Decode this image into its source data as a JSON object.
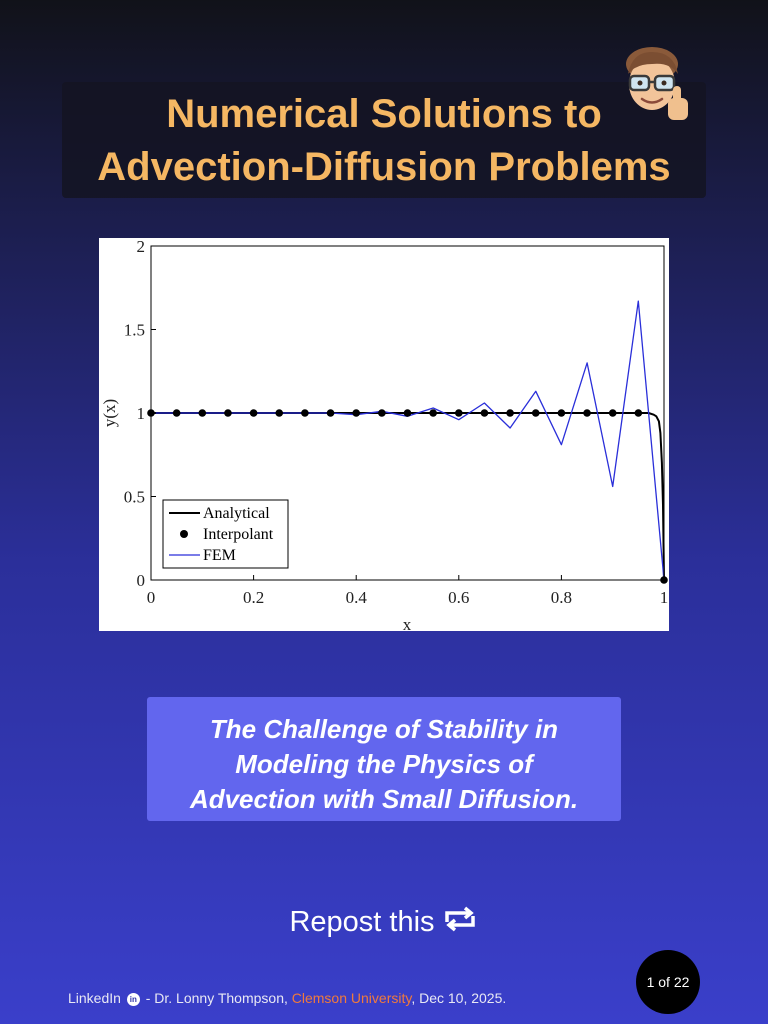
{
  "header": {
    "title_line1": "Numerical Solutions to",
    "title_line2": "Advection-Diffusion Problems"
  },
  "chart_data": {
    "type": "line",
    "title": "",
    "xlabel": "x",
    "ylabel": "y(x)",
    "xlim": [
      0,
      1
    ],
    "ylim": [
      0,
      2
    ],
    "xticks": [
      0,
      0.2,
      0.4,
      0.6,
      0.8,
      1
    ],
    "yticks": [
      0,
      0.5,
      1,
      1.5,
      2
    ],
    "xtick_labels": [
      "0",
      "0.2",
      "0.4",
      "0.6",
      "0.8",
      "1"
    ],
    "ytick_labels": [
      "0",
      "0.5",
      "1",
      "1.5",
      "2"
    ],
    "grid": false,
    "legend_position": "bottom-left",
    "series": [
      {
        "name": "Analytical",
        "color": "#000000",
        "style": "line",
        "x": [
          0,
          0.1,
          0.2,
          0.3,
          0.4,
          0.5,
          0.6,
          0.7,
          0.8,
          0.9,
          0.97,
          0.98,
          0.985,
          0.99,
          0.993,
          0.996,
          0.998,
          1.0
        ],
        "y": [
          1,
          1,
          1,
          1,
          1,
          1,
          1,
          1,
          1,
          1,
          1,
          0.99,
          0.98,
          0.95,
          0.88,
          0.7,
          0.45,
          0
        ]
      },
      {
        "name": "Interpolant",
        "color": "#000000",
        "style": "markers",
        "x": [
          0,
          0.05,
          0.1,
          0.15,
          0.2,
          0.25,
          0.3,
          0.35,
          0.4,
          0.45,
          0.5,
          0.55,
          0.6,
          0.65,
          0.7,
          0.75,
          0.8,
          0.85,
          0.9,
          0.95,
          1.0
        ],
        "y": [
          1,
          1,
          1,
          1,
          1,
          1,
          1,
          1,
          1,
          1,
          1,
          1,
          1,
          1,
          1,
          1,
          1,
          1,
          1,
          1,
          0
        ]
      },
      {
        "name": "FEM",
        "color": "#2a2fd9",
        "style": "line",
        "x": [
          0,
          0.05,
          0.1,
          0.15,
          0.2,
          0.25,
          0.3,
          0.35,
          0.4,
          0.45,
          0.5,
          0.55,
          0.6,
          0.65,
          0.7,
          0.75,
          0.8,
          0.85,
          0.9,
          0.95,
          1.0
        ],
        "y": [
          1,
          1,
          1,
          1,
          1,
          1,
          1,
          1,
          0.99,
          1.01,
          0.98,
          1.03,
          0.96,
          1.06,
          0.91,
          1.13,
          0.81,
          1.3,
          0.56,
          1.67,
          0
        ]
      }
    ]
  },
  "subtitle": {
    "line1": "The Challenge of Stability in",
    "line2": "Modeling the Physics of",
    "line3": "Advection with Small Diffusion."
  },
  "repost": {
    "label": "Repost this",
    "icon": "repost-icon"
  },
  "pagination": {
    "label": "1 of 22"
  },
  "footer": {
    "platform": "LinkedIn",
    "linkedin_icon": "in",
    "author_text": " - Dr. Lonny Thompson, ",
    "organization": "Clemson University",
    "date_text": ", Dec 10, 2025."
  },
  "colors": {
    "title": "#f5b763",
    "subtitle_box": "#6266ee",
    "fem_line": "#2a2fd9",
    "organization": "#f07a3c"
  }
}
